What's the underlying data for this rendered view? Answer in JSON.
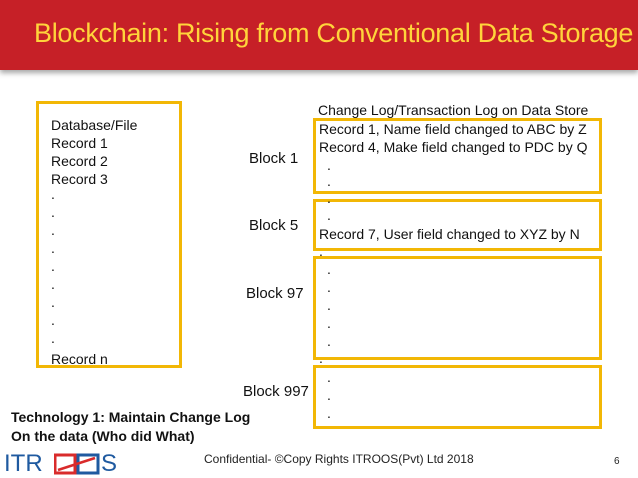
{
  "title": "Blockchain: Rising from Conventional Data Storage",
  "database": {
    "lines": [
      "Database/File",
      "Record 1",
      "Record 2",
      "Record 3"
    ],
    "dots": [
      ".",
      ".",
      ".",
      ".",
      ".",
      ".",
      ".",
      ".",
      "."
    ],
    "last": "Record n"
  },
  "log": {
    "header": "Change Log/Transaction Log on Data Store",
    "block1": {
      "label": "Block 1",
      "lines": [
        "Record 1, Name field changed to ABC by Z",
        "Record 4, Make field changed to PDC by Q",
        ".",
        "."
      ]
    },
    "block5": {
      "label": "Block 5",
      "lines": [
        ".",
        ".",
        "Record 7, User field changed to XYZ by N"
      ]
    },
    "block97": {
      "label": "Block 97",
      "lines": [
        ".",
        ".",
        ".",
        ".",
        ".",
        ".",
        "."
      ]
    },
    "block997": {
      "label": "Block 997",
      "lines": [
        ".",
        ".",
        "."
      ]
    }
  },
  "technology": {
    "line1": "Technology 1: Maintain Change Log",
    "line2": "On the data (Who did What)"
  },
  "footer": "Confidential- ©Copy Rights ITROOS(Pvt) Ltd 2018",
  "page_number": "6",
  "logo": {
    "left": "ITR",
    "right": "S"
  },
  "colors": {
    "header": "#c62027",
    "title": "#ffd43b",
    "box": "#f2b705",
    "logo_blue": "#1f5aa0",
    "logo_red": "#d92b2b"
  }
}
